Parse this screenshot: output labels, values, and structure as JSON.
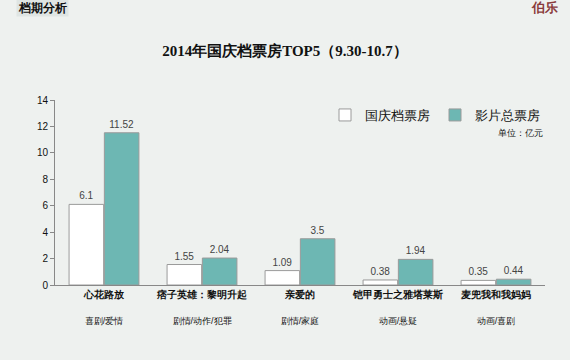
{
  "header": "档期分析",
  "logo": "伯乐",
  "chart_data": {
    "type": "bar",
    "title": "2014年国庆档票房TOP5（9.30-10.7）",
    "unit_note": "单位：亿元",
    "categories": [
      "心花路放",
      "痞子英雄：黎明升起",
      "亲爱的",
      "铠甲勇士之雅塔莱斯",
      "麦兜我和我妈妈"
    ],
    "category_genres": [
      "喜剧/爱情",
      "剧情/动作/犯罪",
      "剧情/家庭",
      "动画/悬疑",
      "动画/喜剧"
    ],
    "series": [
      {
        "name": "国庆档票房",
        "color": "#ffffff",
        "values": [
          6.1,
          1.55,
          1.09,
          0.38,
          0.35
        ]
      },
      {
        "name": "影片总票房",
        "color": "#6db7b3",
        "values": [
          11.52,
          2.04,
          3.5,
          1.94,
          0.44
        ]
      }
    ],
    "ylim": [
      0,
      14
    ],
    "yticks": [
      0,
      2,
      4,
      6,
      8,
      10,
      12,
      14
    ],
    "grid": false,
    "legend": "top right",
    "data_labels": true
  }
}
